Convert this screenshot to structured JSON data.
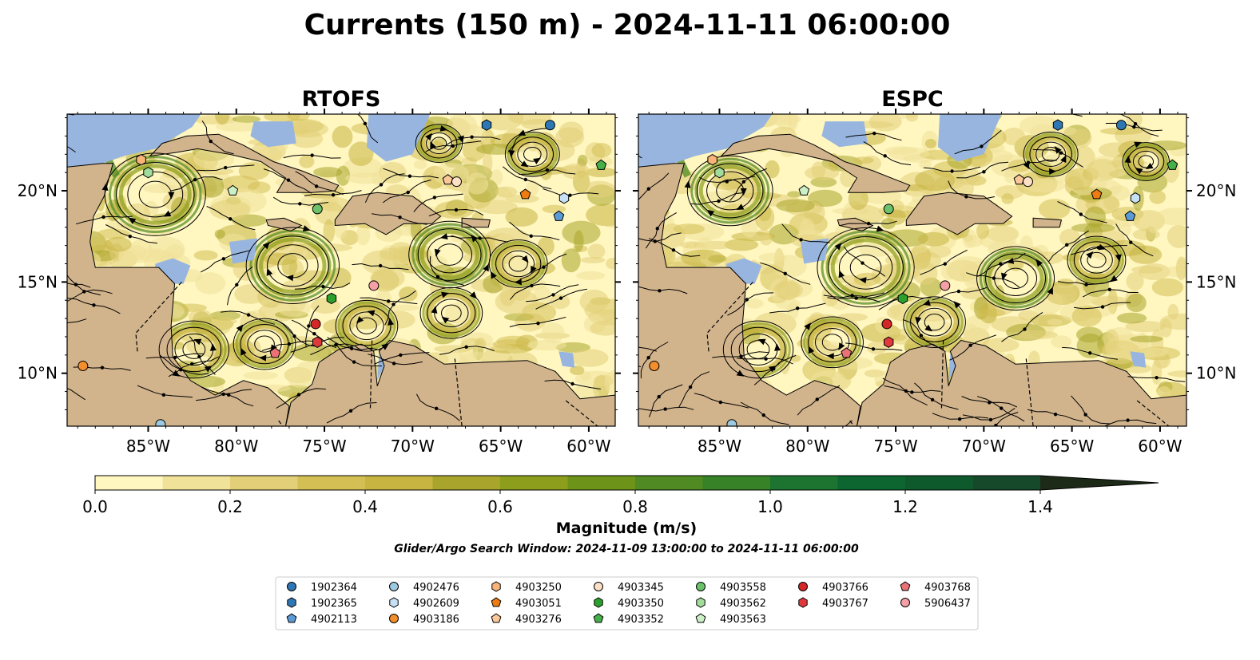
{
  "figure_title": "Currents (150 m) - 2024-11-11 06:00:00",
  "colors": {
    "ocean_low": "#fff6c0",
    "ocean_mid": "#d8c560",
    "ocean_high": "#4a8c2a",
    "land": "#d1b38c",
    "shallow": "#97b5df",
    "stream": "#000000"
  },
  "colorbar": {
    "label": "Magnitude (m/s)",
    "ticks": [
      "0.0",
      "0.2",
      "0.4",
      "0.6",
      "0.8",
      "1.0",
      "1.2",
      "1.4"
    ],
    "levels": [
      0.0,
      0.1,
      0.2,
      0.3,
      0.4,
      0.5,
      0.6,
      0.7,
      0.8,
      0.9,
      1.0,
      1.1,
      1.2,
      1.3,
      1.4,
      1.5
    ],
    "colors": [
      "#fff6c0",
      "#f1e29a",
      "#e2cf78",
      "#d4bf55",
      "#c7b441",
      "#a9a52c",
      "#8c9e1c",
      "#6d9419",
      "#4f8a22",
      "#378226",
      "#1d7430",
      "#0d6630",
      "#0e5a2d",
      "#15492a",
      "#1a3a22",
      "#1d2a17"
    ],
    "extend": "max"
  },
  "search_window_text": "Glider/Argo Search Window: 2024-11-09 13:00:00 to 2024-11-11 06:00:00",
  "chart_data": [
    {
      "type": "map",
      "title": "RTOFS",
      "lon_ticks": [
        "85°W",
        "80°W",
        "75°W",
        "70°W",
        "65°W",
        "60°W"
      ],
      "lat_ticks": [
        "20°N",
        "15°N",
        "10°N"
      ],
      "xlim": [
        -89.6,
        -58.5
      ],
      "ylim": [
        7.1,
        24.2
      ],
      "lat_ticks_side": "left",
      "variable": "current speed at 150 m (m/s)",
      "markers": [
        {
          "id": "1902364",
          "lon": -62.2,
          "lat": 23.6
        },
        {
          "id": "1902365",
          "lon": -65.8,
          "lat": 23.6
        },
        {
          "id": "4902113",
          "lon": -61.7,
          "lat": 18.6
        },
        {
          "id": "4902476",
          "lon": -84.3,
          "lat": 7.2
        },
        {
          "id": "4902609",
          "lon": -61.4,
          "lat": 19.6
        },
        {
          "id": "4903186",
          "lon": -88.7,
          "lat": 10.4
        },
        {
          "id": "4903250",
          "lon": -85.4,
          "lat": 21.7
        },
        {
          "id": "4903051",
          "lon": -63.6,
          "lat": 19.8
        },
        {
          "id": "4903276",
          "lon": -68.0,
          "lat": 20.6
        },
        {
          "id": "4903345",
          "lon": -67.5,
          "lat": 20.5
        },
        {
          "id": "4903350",
          "lon": -74.6,
          "lat": 14.1
        },
        {
          "id": "4903352",
          "lon": -59.3,
          "lat": 21.4
        },
        {
          "id": "4903558",
          "lon": -75.4,
          "lat": 19.0
        },
        {
          "id": "4903562",
          "lon": -85.0,
          "lat": 21.0
        },
        {
          "id": "4903563",
          "lon": -80.2,
          "lat": 20.0
        },
        {
          "id": "4903766",
          "lon": -75.5,
          "lat": 12.7
        },
        {
          "id": "4903767",
          "lon": -75.4,
          "lat": 11.7
        },
        {
          "id": "4903768",
          "lon": -77.8,
          "lat": 11.1
        },
        {
          "id": "5906437",
          "lon": -72.2,
          "lat": 14.8
        }
      ],
      "eddies": [
        {
          "lon": -84.6,
          "lat": 19.8,
          "r": 2.6,
          "dir": "cw"
        },
        {
          "lon": -76.8,
          "lat": 15.9,
          "r": 2.4,
          "dir": "cw"
        },
        {
          "lon": -67.9,
          "lat": 16.5,
          "r": 2.1,
          "dir": "ccw"
        },
        {
          "lon": -82.4,
          "lat": 11.3,
          "r": 1.8,
          "dir": "ccw"
        },
        {
          "lon": -78.4,
          "lat": 11.6,
          "r": 1.6,
          "dir": "cw"
        },
        {
          "lon": -67.8,
          "lat": 13.3,
          "r": 1.6,
          "dir": "cw"
        },
        {
          "lon": -72.6,
          "lat": 12.6,
          "r": 1.6,
          "dir": "ccw"
        },
        {
          "lon": -64.0,
          "lat": 16.0,
          "r": 1.5,
          "dir": "cw"
        },
        {
          "lon": -63.2,
          "lat": 22.0,
          "r": 1.4,
          "dir": "ccw"
        },
        {
          "lon": -68.5,
          "lat": 22.6,
          "r": 1.2,
          "dir": "cw"
        }
      ]
    },
    {
      "type": "map",
      "title": "ESPC",
      "lon_ticks": [
        "85°W",
        "80°W",
        "75°W",
        "70°W",
        "65°W",
        "60°W"
      ],
      "lat_ticks": [
        "20°N",
        "15°N",
        "10°N"
      ],
      "xlim": [
        -89.6,
        -58.5
      ],
      "ylim": [
        7.1,
        24.2
      ],
      "lat_ticks_side": "right",
      "variable": "current speed at 150 m (m/s)",
      "markers": [
        {
          "id": "1902364",
          "lon": -62.2,
          "lat": 23.6
        },
        {
          "id": "1902365",
          "lon": -65.8,
          "lat": 23.6
        },
        {
          "id": "4902113",
          "lon": -61.7,
          "lat": 18.6
        },
        {
          "id": "4902476",
          "lon": -84.3,
          "lat": 7.2
        },
        {
          "id": "4902609",
          "lon": -61.4,
          "lat": 19.6
        },
        {
          "id": "4903186",
          "lon": -88.7,
          "lat": 10.4
        },
        {
          "id": "4903250",
          "lon": -85.4,
          "lat": 21.7
        },
        {
          "id": "4903051",
          "lon": -63.6,
          "lat": 19.8
        },
        {
          "id": "4903276",
          "lon": -68.0,
          "lat": 20.6
        },
        {
          "id": "4903345",
          "lon": -67.5,
          "lat": 20.5
        },
        {
          "id": "4903350",
          "lon": -74.6,
          "lat": 14.1
        },
        {
          "id": "4903352",
          "lon": -59.3,
          "lat": 21.4
        },
        {
          "id": "4903558",
          "lon": -75.4,
          "lat": 19.0
        },
        {
          "id": "4903562",
          "lon": -85.0,
          "lat": 21.0
        },
        {
          "id": "4903563",
          "lon": -80.2,
          "lat": 20.0
        },
        {
          "id": "4903766",
          "lon": -75.5,
          "lat": 12.7
        },
        {
          "id": "4903767",
          "lon": -75.4,
          "lat": 11.7
        },
        {
          "id": "4903768",
          "lon": -77.8,
          "lat": 11.1
        },
        {
          "id": "5906437",
          "lon": -72.2,
          "lat": 14.8
        }
      ],
      "eddies": [
        {
          "lon": -84.4,
          "lat": 20.0,
          "r": 2.2,
          "dir": "cw"
        },
        {
          "lon": -76.7,
          "lat": 15.8,
          "r": 2.5,
          "dir": "cw"
        },
        {
          "lon": -68.2,
          "lat": 15.2,
          "r": 2.0,
          "dir": "ccw"
        },
        {
          "lon": -82.8,
          "lat": 11.3,
          "r": 1.8,
          "dir": "ccw"
        },
        {
          "lon": -78.6,
          "lat": 11.7,
          "r": 1.6,
          "dir": "cw"
        },
        {
          "lon": -72.8,
          "lat": 12.8,
          "r": 1.6,
          "dir": "ccw"
        },
        {
          "lon": -63.6,
          "lat": 16.2,
          "r": 1.5,
          "dir": "cw"
        },
        {
          "lon": -66.2,
          "lat": 22.0,
          "r": 1.4,
          "dir": "ccw"
        },
        {
          "lon": -60.8,
          "lat": 21.6,
          "r": 1.2,
          "dir": "cw"
        }
      ]
    }
  ],
  "legend": {
    "placement": "bottom-center",
    "entries": [
      {
        "id": "1902364",
        "shape": "circle",
        "color": "#2e77b5"
      },
      {
        "id": "1902365",
        "shape": "hexagon",
        "color": "#2e77b5"
      },
      {
        "id": "4902113",
        "shape": "pentagon",
        "color": "#5b9bd5"
      },
      {
        "id": "4902476",
        "shape": "circle",
        "color": "#9ecae1"
      },
      {
        "id": "4902609",
        "shape": "hexagon",
        "color": "#c6e0f5"
      },
      {
        "id": "4903186",
        "shape": "circle",
        "color": "#f28e2b"
      },
      {
        "id": "4903250",
        "shape": "hexagon",
        "color": "#f7b378"
      },
      {
        "id": "4903051",
        "shape": "pentagon",
        "color": "#f07b12"
      },
      {
        "id": "4903276",
        "shape": "pentagon",
        "color": "#fbc89a"
      },
      {
        "id": "4903345",
        "shape": "circle",
        "color": "#fde0c5"
      },
      {
        "id": "4903350",
        "shape": "hexagon",
        "color": "#2ca02c"
      },
      {
        "id": "4903352",
        "shape": "pentagon",
        "color": "#45b049"
      },
      {
        "id": "4903558",
        "shape": "circle",
        "color": "#6cc26a"
      },
      {
        "id": "4903562",
        "shape": "hexagon",
        "color": "#a1dc9a"
      },
      {
        "id": "4903563",
        "shape": "pentagon",
        "color": "#ccf0c6"
      },
      {
        "id": "4903766",
        "shape": "circle",
        "color": "#d62728"
      },
      {
        "id": "4903767",
        "shape": "hexagon",
        "color": "#e0393c"
      },
      {
        "id": "4903768",
        "shape": "pentagon",
        "color": "#ea7276"
      },
      {
        "id": "5906437",
        "shape": "circle",
        "color": "#f4a0a6"
      }
    ]
  }
}
